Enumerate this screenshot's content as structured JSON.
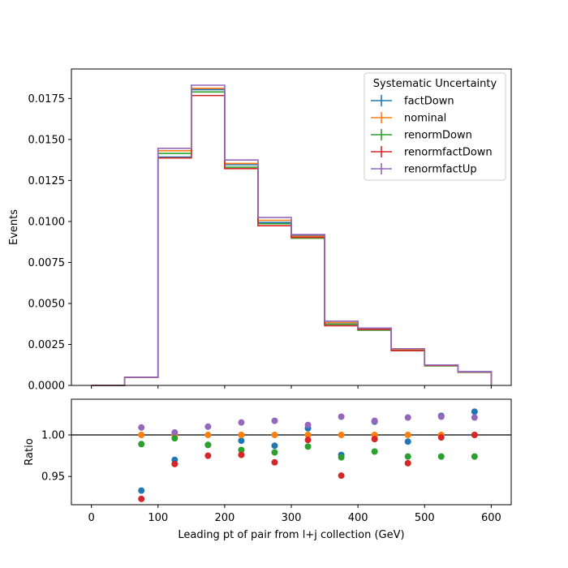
{
  "chart_data": [
    {
      "type": "line",
      "style": "step-histogram",
      "xlabel": "",
      "ylabel": "Events",
      "xlim": [
        -30,
        630
      ],
      "ylim": [
        0,
        0.0193
      ],
      "yticks": [
        "0.0000",
        "0.0025",
        "0.0050",
        "0.0075",
        "0.0100",
        "0.0125",
        "0.0150",
        "0.0175"
      ],
      "xticks": [
        0,
        100,
        200,
        300,
        400,
        500,
        600
      ],
      "bin_edges": [
        0,
        50,
        100,
        150,
        200,
        250,
        300,
        350,
        400,
        450,
        500,
        550,
        600
      ],
      "legend": {
        "title": "Systematic Uncertainty",
        "placement": "upper right"
      },
      "series": [
        {
          "name": "factDown",
          "color": "#1f77b4",
          "values": [
            0.0,
            0.0005,
            0.01393,
            0.01804,
            0.01346,
            0.00994,
            0.00916,
            0.00374,
            0.00342,
            0.00217,
            0.00122,
            0.00084
          ]
        },
        {
          "name": "nominal",
          "color": "#ff7f0e",
          "values": [
            0.0,
            0.0005,
            0.01431,
            0.01812,
            0.01354,
            0.01007,
            0.00909,
            0.00383,
            0.00344,
            0.00219,
            0.00122,
            0.00082
          ]
        },
        {
          "name": "renormDown",
          "color": "#2ca02c",
          "values": [
            0.0,
            0.0005,
            0.01415,
            0.0179,
            0.01331,
            0.00986,
            0.00898,
            0.00373,
            0.00337,
            0.00213,
            0.00119,
            0.0008
          ]
        },
        {
          "name": "renormfactDown",
          "color": "#d62728",
          "values": [
            0.0,
            0.0005,
            0.01387,
            0.01768,
            0.01322,
            0.00974,
            0.00903,
            0.00364,
            0.00342,
            0.00212,
            0.00122,
            0.00082
          ]
        },
        {
          "name": "renormfactUp",
          "color": "#9467bd",
          "values": [
            0.0,
            0.0005,
            0.01446,
            0.01831,
            0.01375,
            0.01024,
            0.0092,
            0.00392,
            0.0035,
            0.00224,
            0.00125,
            0.00084
          ]
        }
      ]
    },
    {
      "type": "scatter",
      "xlabel": "Leading pt of pair from l+j collection (GeV)",
      "ylabel": "Ratio",
      "xlim": [
        -30,
        630
      ],
      "ylim": [
        0.916,
        1.043
      ],
      "yticks": [
        "0.95",
        "1.00"
      ],
      "xticks": [
        0,
        100,
        200,
        300,
        400,
        500,
        600
      ],
      "reference_line": 1.0,
      "x": [
        75,
        125,
        175,
        225,
        275,
        325,
        375,
        425,
        475,
        525,
        575
      ],
      "series": [
        {
          "name": "factDown",
          "color": "#1f77b4",
          "values": [
            0.933,
            0.97,
            0.988,
            0.993,
            0.987,
            1.008,
            0.976,
            1.016,
            0.992,
            1.023,
            1.028
          ]
        },
        {
          "name": "nominal",
          "color": "#ff7f0e",
          "values": [
            1.0,
            1.0,
            1.0,
            1.0,
            1.0,
            1.0,
            1.0,
            1.0,
            1.0,
            1.0,
            1.0
          ]
        },
        {
          "name": "renormDown",
          "color": "#2ca02c",
          "values": [
            0.989,
            0.996,
            0.988,
            0.982,
            0.979,
            0.986,
            0.973,
            0.98,
            0.974,
            0.974,
            0.974
          ]
        },
        {
          "name": "renormfactDown",
          "color": "#d62728",
          "values": [
            0.923,
            0.965,
            0.975,
            0.976,
            0.967,
            0.994,
            0.951,
            0.995,
            0.966,
            0.997,
            1.0
          ]
        },
        {
          "name": "renormfactUp",
          "color": "#9467bd",
          "values": [
            1.009,
            1.003,
            1.01,
            1.015,
            1.017,
            1.012,
            1.022,
            1.017,
            1.021,
            1.022,
            1.021
          ]
        }
      ]
    }
  ]
}
